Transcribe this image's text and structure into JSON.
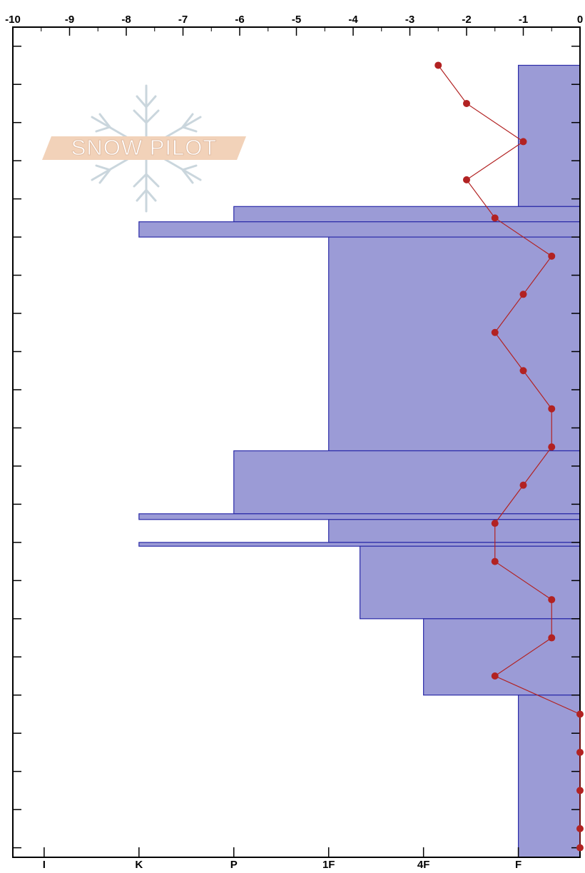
{
  "chart_data": {
    "type": "snow-profile",
    "watermark": "SNOW PILOT",
    "ylim": [
      -2.5,
      215
    ],
    "yticks": [
      0,
      10,
      20,
      30,
      40,
      50,
      60,
      70,
      80,
      90,
      100,
      110,
      120,
      130,
      140,
      150,
      160,
      170,
      180,
      190,
      200,
      210
    ],
    "temperature": {
      "color": "#b22222",
      "xlim": [
        -10,
        0
      ],
      "xticks": [
        -10,
        -9,
        -8,
        -7,
        -6,
        -5,
        -4,
        -3,
        -2,
        -1,
        0
      ],
      "heights": [
        205,
        195,
        185,
        175,
        165,
        155,
        145,
        135,
        125,
        115,
        105,
        95,
        85,
        75,
        65,
        55,
        45,
        35,
        25,
        15,
        5,
        0
      ],
      "values": [
        -2.5,
        -2,
        -1,
        -2,
        -1.5,
        -0.5,
        -1,
        -1.5,
        -1,
        -0.5,
        -0.5,
        -1,
        -1.5,
        -1.5,
        -0.5,
        -0.5,
        -1.5,
        0,
        0,
        0,
        0,
        0
      ]
    },
    "layers": {
      "color": "#9b9bd6",
      "tops": [
        205,
        168,
        164,
        160,
        104,
        87.5,
        86,
        80,
        79,
        60,
        40
      ],
      "bottoms": [
        168,
        164,
        160,
        104,
        87.5,
        86,
        80,
        79,
        60,
        40,
        -2.5
      ],
      "hardness": [
        1,
        4,
        5,
        3,
        4,
        5,
        3,
        5,
        2.67,
        2,
        1
      ]
    },
    "hardness_axis": {
      "xlim": [
        6.33,
        0.35
      ],
      "xticks": [
        {
          "value": 6,
          "label": "I"
        },
        {
          "value": 5,
          "label": "K"
        },
        {
          "value": 4,
          "label": "P"
        },
        {
          "value": 3,
          "label": "1F"
        },
        {
          "value": 2,
          "label": "4F"
        },
        {
          "value": 1,
          "label": "F"
        }
      ]
    }
  }
}
